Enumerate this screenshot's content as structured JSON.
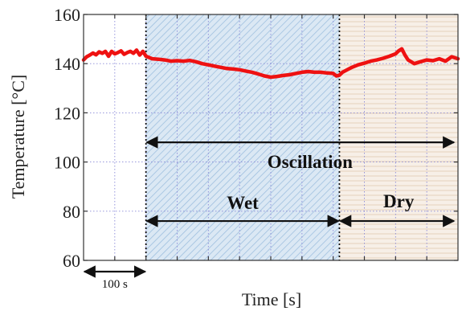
{
  "chart_data": {
    "type": "line",
    "title": "",
    "xlabel": "Time [s]",
    "ylabel": "Temperature [°C]",
    "ylim": [
      60,
      160
    ],
    "xlim": [
      0,
      600
    ],
    "yticks": [
      60,
      80,
      100,
      120,
      140,
      160
    ],
    "ytick_labels": [
      "60",
      "80",
      "100",
      "120",
      "140",
      "160"
    ],
    "grid": true,
    "legend": "none",
    "colors": {
      "line": "#ee1111",
      "wet_region": "#c6dcef",
      "dry_region": "#f2e6da",
      "grid": "#8a8ad8"
    },
    "regions": [
      {
        "label": "Wet",
        "start": 100,
        "end": 410
      },
      {
        "label": "Dry",
        "start": 410,
        "end": 600
      }
    ],
    "annotations": {
      "oscillation": {
        "label": "Oscillation",
        "start": 100,
        "end": 600,
        "y": 108
      },
      "wet": {
        "label": "Wet",
        "start": 100,
        "end": 410,
        "y": 76
      },
      "dry": {
        "label": "Dry",
        "start": 410,
        "end": 600,
        "y": 76
      },
      "scale": {
        "label": "100 s",
        "start": 0,
        "end": 100
      }
    },
    "series": [
      {
        "x": [
          0,
          5,
          10,
          15,
          20,
          25,
          30,
          35,
          40,
          45,
          50,
          55,
          60,
          65,
          70,
          75,
          80,
          85,
          90,
          95,
          100,
          105,
          110,
          120,
          130,
          140,
          150,
          160,
          170,
          180,
          190,
          200,
          210,
          220,
          230,
          240,
          250,
          260,
          270,
          280,
          290,
          300,
          310,
          320,
          330,
          340,
          350,
          360,
          370,
          380,
          390,
          400,
          405,
          410,
          415,
          420,
          430,
          440,
          450,
          460,
          470,
          480,
          490,
          500,
          505,
          510,
          515,
          520,
          530,
          540,
          550,
          560,
          570,
          580,
          590,
          600
        ],
        "y": [
          141.5,
          142.8,
          143.5,
          144.3,
          143.6,
          144.8,
          144.2,
          145,
          143,
          145,
          144,
          144.5,
          145.2,
          143.8,
          144.5,
          145,
          144.2,
          145.5,
          143.5,
          145,
          143,
          142.5,
          142,
          141.8,
          141.5,
          141,
          141.2,
          141,
          141.3,
          140.8,
          140,
          139.5,
          139,
          138.5,
          138,
          137.8,
          137.5,
          137,
          136.5,
          135.8,
          135,
          134.5,
          134.8,
          135.2,
          135.5,
          136,
          136.5,
          136.8,
          136.5,
          136.5,
          136.2,
          136,
          135,
          135.3,
          136.5,
          137.2,
          138.5,
          139.5,
          140.2,
          141,
          141.5,
          142.2,
          143,
          144,
          145.2,
          146,
          143.5,
          141.5,
          140,
          140.8,
          141.5,
          141.2,
          142,
          141,
          142.8,
          142
        ]
      }
    ]
  }
}
